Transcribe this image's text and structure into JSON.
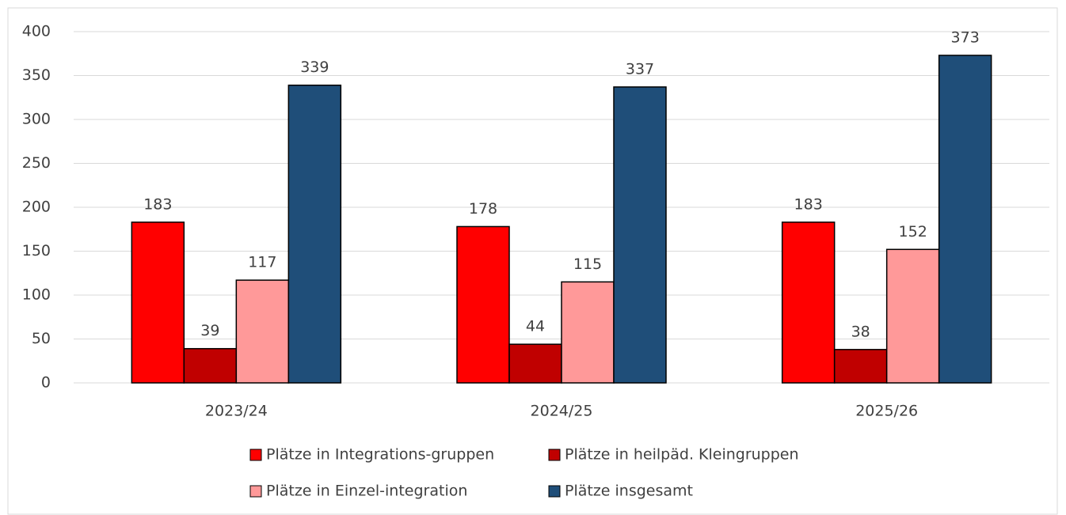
{
  "chart_data": {
    "type": "bar",
    "categories": [
      "2023/24",
      "2024/25",
      "2025/26"
    ],
    "series": [
      {
        "name": "Plätze in Integrations-gruppen",
        "color": "#ff0000",
        "values": [
          183,
          178,
          183
        ]
      },
      {
        "name": "Plätze in heilpäd. Kleingruppen",
        "color": "#c00000",
        "values": [
          39,
          44,
          38
        ]
      },
      {
        "name": "Plätze in Einzel-integration",
        "color": "#ff9999",
        "values": [
          117,
          115,
          152
        ]
      },
      {
        "name": "Plätze insgesamt",
        "color": "#1f4e79",
        "values": [
          339,
          337,
          373
        ]
      }
    ],
    "ylim": [
      0,
      400
    ],
    "yticks": [
      0,
      50,
      100,
      150,
      200,
      250,
      300,
      350,
      400
    ],
    "grid": true,
    "legend": "bottom"
  }
}
